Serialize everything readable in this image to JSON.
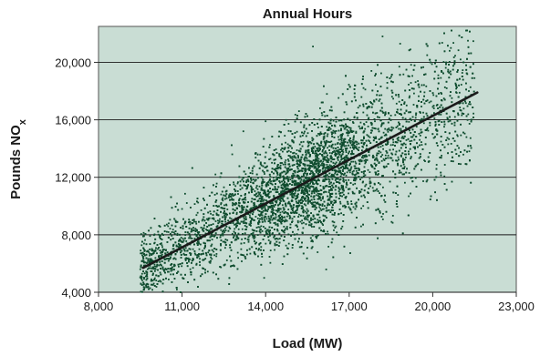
{
  "colors": {
    "plot_background": "#c9ddd4",
    "gridline": "#1a1a1a",
    "point": "#0f4d2f",
    "trendline": "#1a1a1a"
  },
  "chart_data": {
    "type": "scatter",
    "title": "Annual Hours",
    "xlabel": "Load (MW)",
    "ylabel_main": "Pounds NO",
    "ylabel_sub": "x",
    "xlim": [
      8000,
      23000
    ],
    "ylim": [
      4000,
      22500
    ],
    "xticks": [
      8000,
      11000,
      14000,
      17000,
      20000,
      23000
    ],
    "xtick_labels": [
      "8,000",
      "11,000",
      "14,000",
      "17,000",
      "20,000",
      "23,000"
    ],
    "yticks": [
      4000,
      8000,
      12000,
      16000,
      20000
    ],
    "ytick_labels": [
      "4,000",
      "8,000",
      "12,000",
      "16,000",
      "20,000"
    ],
    "grid": "horizontal",
    "legend": "none",
    "point_count": 6500,
    "series": [
      {
        "kind": "points",
        "sample_points": [
          [
            9500,
            5600
          ],
          [
            9600,
            6200
          ],
          [
            9700,
            5100
          ],
          [
            9800,
            6800
          ],
          [
            9900,
            4900
          ],
          [
            10000,
            7400
          ],
          [
            10200,
            6100
          ],
          [
            10500,
            8600
          ],
          [
            10800,
            7200
          ],
          [
            11000,
            9800
          ],
          [
            11200,
            6900
          ],
          [
            11500,
            8900
          ],
          [
            11800,
            10400
          ],
          [
            12000,
            7600
          ],
          [
            12200,
            12200
          ],
          [
            12500,
            9500
          ],
          [
            12800,
            13600
          ],
          [
            13000,
            8800
          ],
          [
            13200,
            15200
          ],
          [
            13500,
            11300
          ],
          [
            13800,
            10100
          ],
          [
            14000,
            15900
          ],
          [
            14200,
            9200
          ],
          [
            14500,
            12700
          ],
          [
            14800,
            14300
          ],
          [
            15000,
            10600
          ],
          [
            15200,
            16600
          ],
          [
            15500,
            11800
          ],
          [
            15700,
            21100
          ],
          [
            15800,
            13400
          ],
          [
            16000,
            9700
          ],
          [
            16200,
            17800
          ],
          [
            16500,
            12500
          ],
          [
            16800,
            15600
          ],
          [
            17000,
            11200
          ],
          [
            17200,
            18400
          ],
          [
            17500,
            14100
          ],
          [
            17800,
            19400
          ],
          [
            18000,
            13200
          ],
          [
            18200,
            21800
          ],
          [
            18500,
            16300
          ],
          [
            18800,
            19700
          ],
          [
            19000,
            15100
          ],
          [
            19200,
            20900
          ],
          [
            19500,
            17300
          ],
          [
            19800,
            20500
          ],
          [
            20000,
            16900
          ],
          [
            20200,
            19100
          ],
          [
            20500,
            18200
          ],
          [
            20800,
            16200
          ],
          [
            21000,
            20200
          ],
          [
            21300,
            17100
          ],
          [
            21500,
            18900
          ]
        ]
      },
      {
        "kind": "trendline",
        "points": [
          [
            9600,
            5700
          ],
          [
            21600,
            17900
          ]
        ]
      }
    ]
  }
}
